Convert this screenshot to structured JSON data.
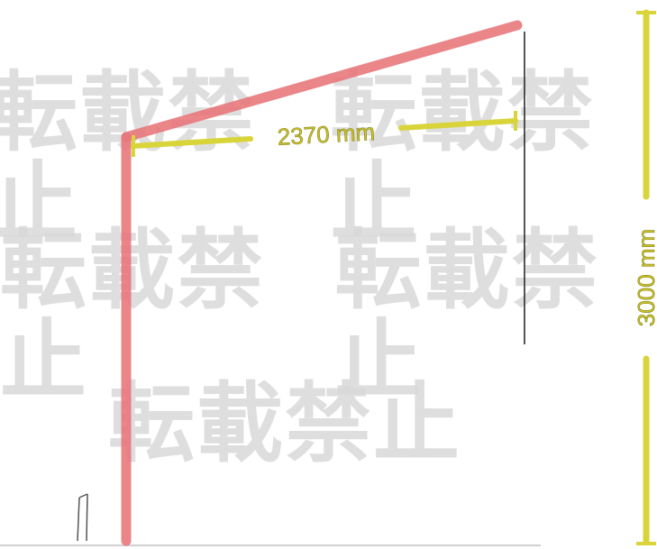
{
  "diagram": {
    "horizontal_dimension": {
      "label": "2370 mm"
    },
    "vertical_dimension": {
      "label": "3000 mm"
    },
    "watermark": {
      "text": "転載禁止"
    },
    "colors": {
      "frame": "#e8787c",
      "dimension": "#d8d43a",
      "dimension_text": "#c9c32a",
      "outline": "#2b2b2b",
      "watermark": "#d9d9d9"
    }
  }
}
